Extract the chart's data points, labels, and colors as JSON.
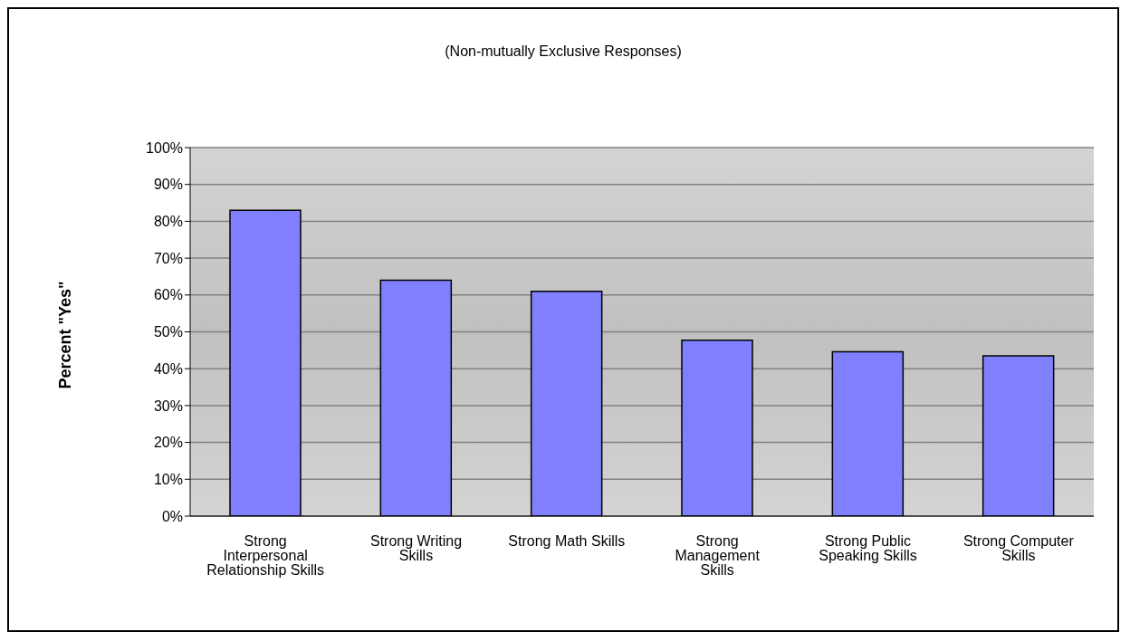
{
  "chart_data": {
    "type": "bar",
    "subtitle": "(Non-mutually Exclusive Responses)",
    "ylabel": "Percent \"Yes\"",
    "categories": [
      "Strong Interpersonal Relationship Skills",
      "Strong Writing Skills",
      "Strong Math Skills",
      "Strong Management Skills",
      "Strong Public Speaking Skills",
      "Strong Computer Skills"
    ],
    "values": [
      83,
      64,
      61,
      47.7,
      44.6,
      43.5
    ],
    "color": "#8080ff",
    "ylim": [
      0,
      100
    ],
    "yticks": [
      {
        "value": 0,
        "label": "0%"
      },
      {
        "value": 10,
        "label": "10%"
      },
      {
        "value": 20,
        "label": "20%"
      },
      {
        "value": 30,
        "label": "30%"
      },
      {
        "value": 40,
        "label": "40%"
      },
      {
        "value": 50,
        "label": "50%"
      },
      {
        "value": 60,
        "label": "60%"
      },
      {
        "value": 70,
        "label": "70%"
      },
      {
        "value": 80,
        "label": "80%"
      },
      {
        "value": 90,
        "label": "90%"
      },
      {
        "value": 100,
        "label": "100%"
      }
    ],
    "grid": "y",
    "legend": false
  }
}
